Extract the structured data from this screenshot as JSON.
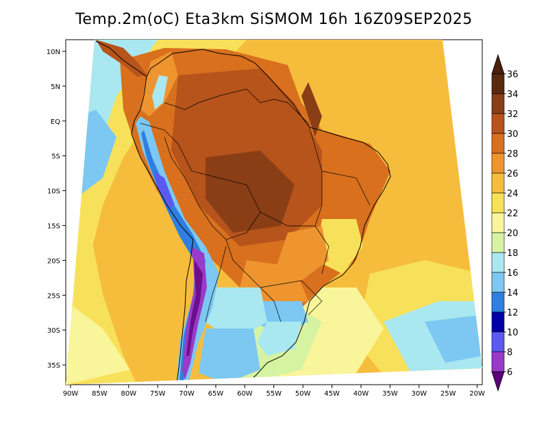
{
  "title": "Temp.2m(oC) Eta3km SiSMOM 16h 16Z09SEP2025",
  "lat_ticks": [
    "10N",
    "5N",
    "EQ",
    "5S",
    "10S",
    "15S",
    "20S",
    "25S",
    "30S",
    "35S"
  ],
  "lon_ticks": [
    "90W",
    "85W",
    "80W",
    "75W",
    "70W",
    "65W",
    "60W",
    "55W",
    "50W",
    "45W",
    "40W",
    "35W",
    "30W",
    "25W",
    "20W"
  ],
  "colorbar": {
    "labels": [
      "36",
      "34",
      "32",
      "30",
      "28",
      "26",
      "24",
      "22",
      "20",
      "18",
      "16",
      "14",
      "12",
      "10",
      "8",
      "6"
    ],
    "colors": [
      "#5a2a10",
      "#8a3e16",
      "#b6541b",
      "#d8701e",
      "#ee9530",
      "#f6bd3c",
      "#f8e15a",
      "#f8f59a",
      "#d6f3a2",
      "#a9e8f0",
      "#7cc8f2",
      "#2f7fe0",
      "#0000a8",
      "#5a5af0",
      "#9a3ac8",
      "#6b0f8a"
    ],
    "top_color": "#4a1f0c",
    "bottom_color": "#5a007a"
  }
}
